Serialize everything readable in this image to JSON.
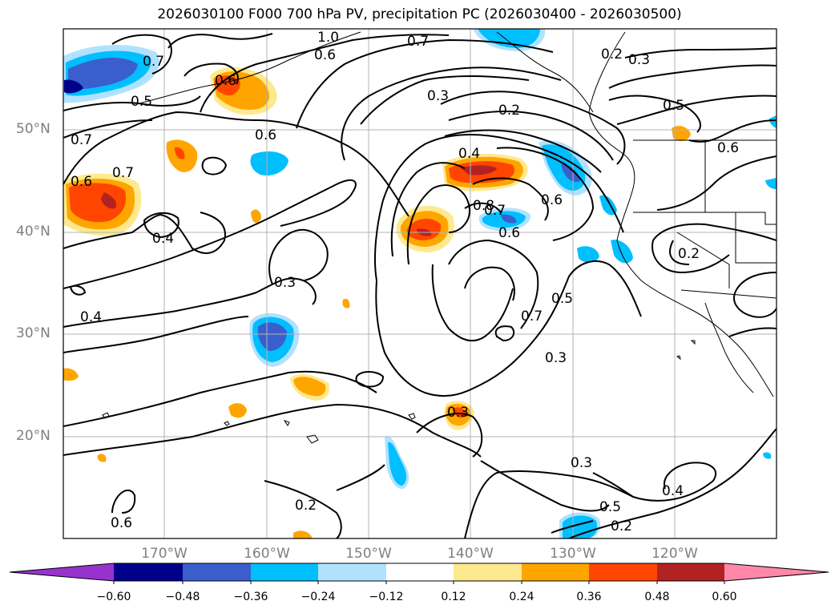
{
  "title": "2026030100 F000 700 hPa PV, precipitation PC (2026030400 - 2026030500)",
  "lat_labels": [
    "50°N",
    "40°N",
    "30°N",
    "20°N"
  ],
  "lon_labels": [
    "170°W",
    "160°W",
    "150°W",
    "140°W",
    "130°W",
    "120°W"
  ],
  "contour_labels": [
    "0.7",
    "0.2",
    "0.3",
    "0.2",
    "0.5",
    "0.3",
    "0.6",
    "0.7",
    "0.4",
    "0.3",
    "0.4",
    "0.3",
    "0.5",
    "0.7",
    "0.3",
    "0.6",
    "0.6",
    "0.8",
    "0.7",
    "0.4",
    "0.2",
    "0.4",
    "0.2",
    "0.3",
    "0.2",
    "0.6",
    "0.7",
    "0.5",
    "0.6",
    "0.5",
    "0.7",
    "1.0",
    "0.6",
    "0.6",
    "0.6"
  ],
  "colorbar": {
    "ticks": [
      "−0.60",
      "−0.48",
      "−0.36",
      "−0.24",
      "−0.12",
      "0.12",
      "0.24",
      "0.36",
      "0.48",
      "0.60"
    ],
    "colors": [
      "#9932cc",
      "#00008b",
      "#3a5fcd",
      "#00bfff",
      "#b0e2ff",
      "#ffffff",
      "#fee98f",
      "#ffa500",
      "#ff4500",
      "#b22222",
      "#ff88aa"
    ]
  }
}
